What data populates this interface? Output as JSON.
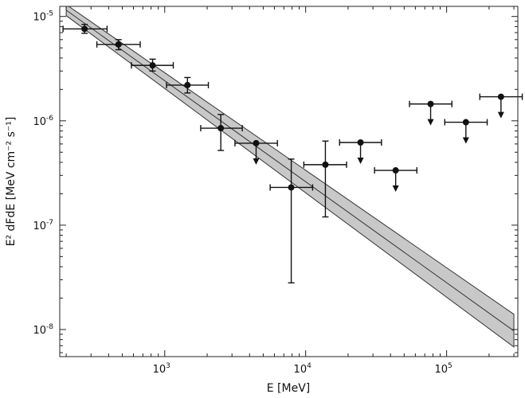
{
  "chart_data": {
    "type": "scatter",
    "title": "",
    "xlabel": "E [MeV]",
    "ylabel": "E² dFdE [MeV cm⁻² s⁻¹]",
    "x_scale": "log",
    "y_scale": "log",
    "xlim": [
      180,
      320000
    ],
    "ylim": [
      5.5e-09,
      1.25e-05
    ],
    "grid": false,
    "x_ticks": [
      {
        "value": 1000,
        "base": "10",
        "exp": "3"
      },
      {
        "value": 10000,
        "base": "10",
        "exp": "4"
      },
      {
        "value": 100000,
        "base": "10",
        "exp": "5"
      }
    ],
    "y_ticks": [
      {
        "value": 1e-08,
        "base": "10",
        "exp": "-8"
      },
      {
        "value": 1e-07,
        "base": "10",
        "exp": "-7"
      },
      {
        "value": 1e-06,
        "base": "10",
        "exp": "-6"
      },
      {
        "value": 1e-05,
        "base": "10",
        "exp": "-5"
      }
    ],
    "points": [
      {
        "x": 270,
        "xlo": 190,
        "xhi": 390,
        "y": 7.6e-06,
        "ylo": 6.9e-06,
        "yhi": 8.4e-06,
        "upper_limit": false
      },
      {
        "x": 470,
        "xlo": 330,
        "xhi": 670,
        "y": 5.4e-06,
        "ylo": 4.8e-06,
        "yhi": 6e-06,
        "upper_limit": false
      },
      {
        "x": 820,
        "xlo": 580,
        "xhi": 1150,
        "y": 3.4e-06,
        "ylo": 3e-06,
        "yhi": 3.9e-06,
        "upper_limit": false
      },
      {
        "x": 1450,
        "xlo": 1030,
        "xhi": 2040,
        "y": 2.2e-06,
        "ylo": 1.85e-06,
        "yhi": 2.6e-06,
        "upper_limit": false
      },
      {
        "x": 2500,
        "xlo": 1800,
        "xhi": 3550,
        "y": 8.5e-07,
        "ylo": 5.2e-07,
        "yhi": 1.15e-06,
        "upper_limit": false
      },
      {
        "x": 4450,
        "xlo": 3150,
        "xhi": 6300,
        "y": 6.1e-07,
        "ylo": null,
        "yhi": null,
        "upper_limit": true
      },
      {
        "x": 7900,
        "xlo": 5600,
        "xhi": 11200,
        "y": 2.3e-07,
        "ylo": 2.8e-08,
        "yhi": 4.3e-07,
        "upper_limit": false
      },
      {
        "x": 13800,
        "xlo": 9700,
        "xhi": 19500,
        "y": 3.8e-07,
        "ylo": 1.2e-07,
        "yhi": 6.4e-07,
        "upper_limit": false
      },
      {
        "x": 24500,
        "xlo": 17400,
        "xhi": 34500,
        "y": 6.2e-07,
        "ylo": null,
        "yhi": null,
        "upper_limit": true
      },
      {
        "x": 43500,
        "xlo": 30800,
        "xhi": 61500,
        "y": 3.35e-07,
        "ylo": null,
        "yhi": null,
        "upper_limit": true
      },
      {
        "x": 77000,
        "xlo": 54500,
        "xhi": 109000,
        "y": 1.45e-06,
        "ylo": null,
        "yhi": null,
        "upper_limit": true
      },
      {
        "x": 137000,
        "xlo": 97000,
        "xhi": 194000,
        "y": 9.7e-07,
        "ylo": null,
        "yhi": null,
        "upper_limit": true
      },
      {
        "x": 243000,
        "xlo": 172000,
        "xhi": 344000,
        "y": 1.7e-06,
        "ylo": null,
        "yhi": null,
        "upper_limit": true
      }
    ],
    "model_fit": {
      "type": "power_law_band",
      "x": [
        200,
        300000
      ],
      "y_center": [
        1.15e-05,
        9.7e-09
      ],
      "y_upper": [
        1.3e-05,
        1.4e-08
      ],
      "y_lower": [
        1.02e-05,
        6.8e-09
      ],
      "band_color": "#c8c8c8",
      "line_color": "#333333"
    },
    "marker_color": "#111111"
  }
}
